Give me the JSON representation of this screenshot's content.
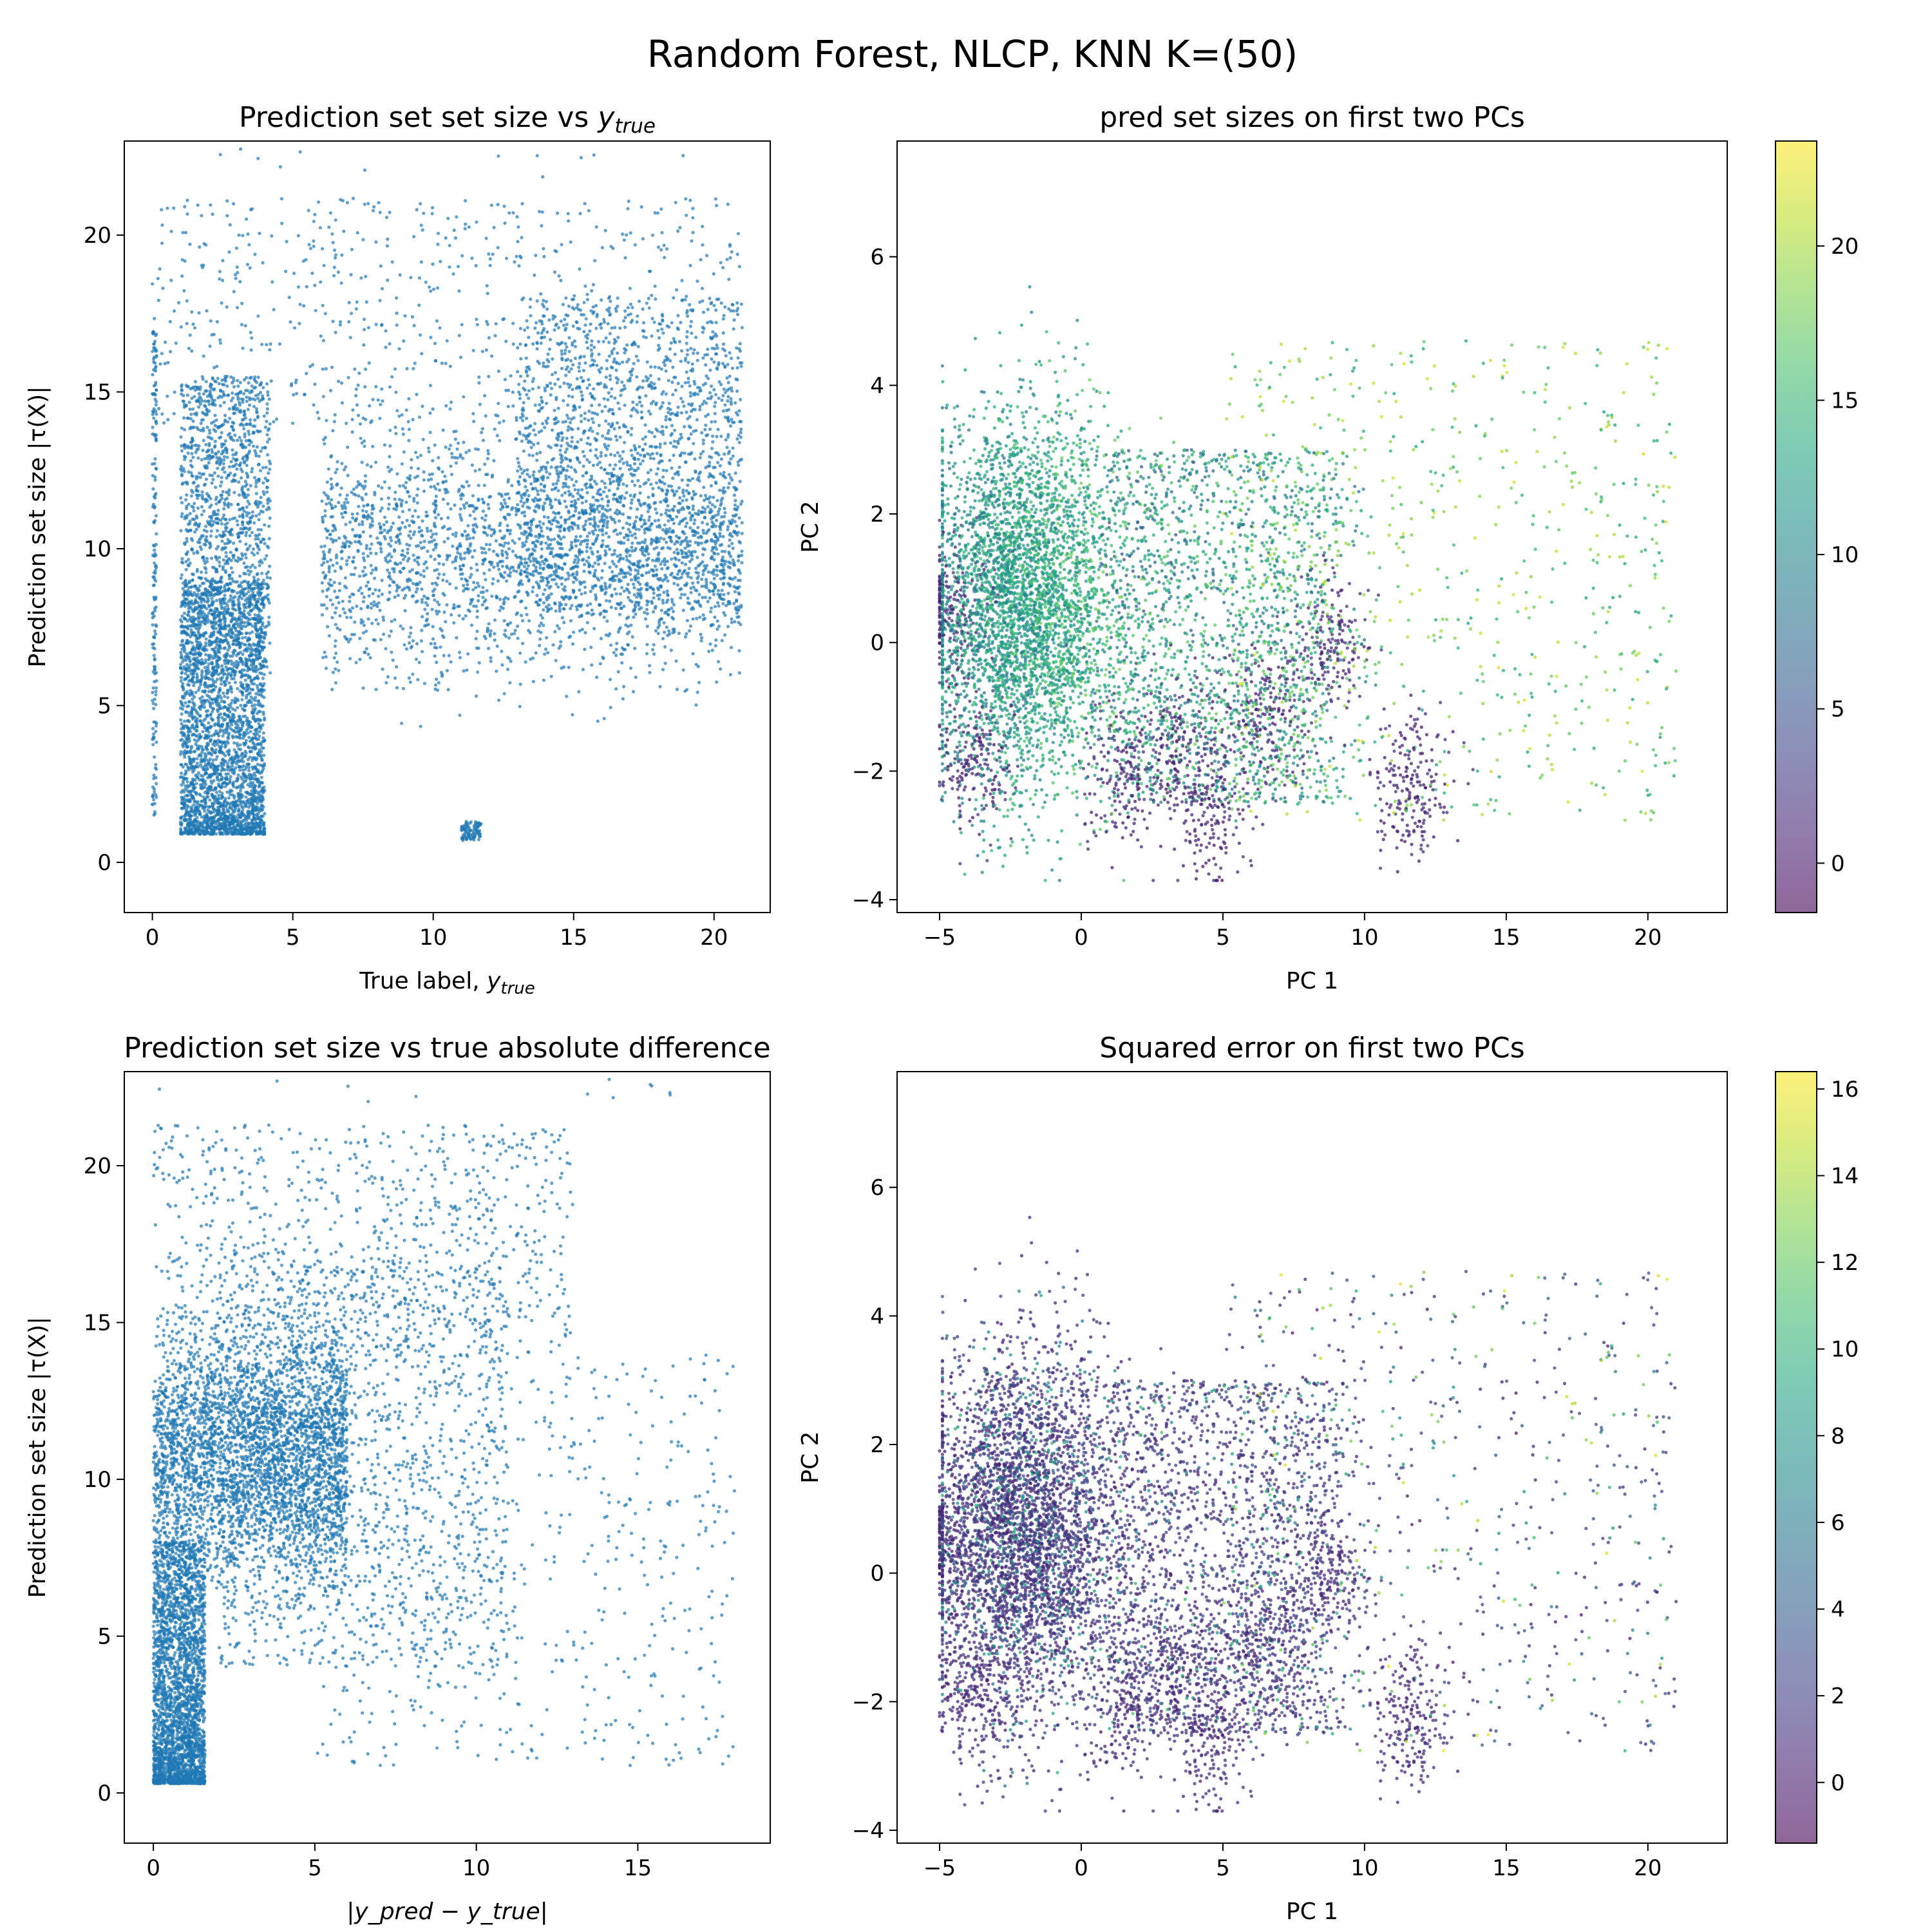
{
  "figure": {
    "suptitle": "Random Forest, NLCP, KNN K=(50)"
  },
  "chart_data": [
    {
      "type": "scatter",
      "title": "Prediction set set size vs y_true",
      "title_main": "Prediction set set size vs ",
      "title_sym": "y",
      "title_sub": "true",
      "xlabel_main": "True label, ",
      "xlabel_sym": "y",
      "xlabel_sub": "true",
      "ylabel": "Prediction set size |τ(X)|",
      "xlim": [
        -1.0,
        22.0
      ],
      "ylim": [
        -1.6,
        23.0
      ],
      "xticks": [
        0,
        5,
        10,
        15,
        20
      ],
      "yticks": [
        0,
        5,
        10,
        15,
        20
      ],
      "grid": false,
      "point_color": "#1f77b4",
      "n_points": 9000,
      "seed": 11,
      "clusters": [
        {
          "w": 0.3,
          "x": [
            1.0,
            4.0
          ],
          "y": [
            0.9,
            9.0
          ],
          "ydist": "low"
        },
        {
          "w": 0.16,
          "x": [
            1.0,
            4.2
          ],
          "y": [
            6.0,
            15.5
          ],
          "ydist": "uniform"
        },
        {
          "w": 0.28,
          "x": [
            6.0,
            21.0
          ],
          "y": [
            4.0,
            16.0
          ],
          "ydist": "mid"
        },
        {
          "w": 0.16,
          "x": [
            13.0,
            21.0
          ],
          "y": [
            8.0,
            18.0
          ],
          "ydist": "uniform"
        },
        {
          "w": 0.07,
          "x": [
            0.0,
            21.0
          ],
          "y": [
            14.0,
            21.2
          ],
          "ydist": "uniform"
        },
        {
          "w": 0.02,
          "x": [
            0.0,
            0.15
          ],
          "y": [
            1.5,
            17.0
          ],
          "ydist": "uniform"
        },
        {
          "w": 0.01,
          "x": [
            11.0,
            11.7
          ],
          "y": [
            0.7,
            1.3
          ],
          "ydist": "uniform"
        }
      ]
    },
    {
      "type": "scatter",
      "title": "pred set sizes on first two PCs",
      "xlabel": "PC 1",
      "ylabel": "PC 2",
      "xlim": [
        -6.5,
        22.8
      ],
      "ylim": [
        -4.2,
        7.8
      ],
      "xticks": [
        -5,
        0,
        5,
        10,
        15,
        20
      ],
      "yticks": [
        -4,
        -2,
        0,
        2,
        4,
        6
      ],
      "grid": false,
      "colorbar": {
        "colormap": "viridis",
        "alpha": 0.6,
        "range": [
          -1.6,
          23.4
        ],
        "ticks": [
          0,
          5,
          10,
          15,
          20
        ]
      },
      "color_mode": "set_size",
      "n_points": 8000,
      "seed": 23
    },
    {
      "type": "scatter",
      "title": "Prediction set size vs true absolute difference",
      "xlabel_main": "",
      "xlabel_sym": "|y_pred − y_true|",
      "ylabel": "Prediction set size |τ(X)|",
      "xlim": [
        -0.9,
        19.1
      ],
      "ylim": [
        -1.6,
        23.0
      ],
      "xticks": [
        0,
        5,
        10,
        15
      ],
      "yticks": [
        0,
        5,
        10,
        15,
        20
      ],
      "grid": false,
      "point_color": "#1f77b4",
      "n_points": 9000,
      "seed": 37,
      "clusters": [
        {
          "w": 0.3,
          "x": [
            0.0,
            1.6
          ],
          "y": [
            0.3,
            8.0
          ],
          "ydist": "low"
        },
        {
          "w": 0.4,
          "x": [
            0.0,
            6.0
          ],
          "y": [
            5.0,
            16.5
          ],
          "ydist": "mid"
        },
        {
          "w": 0.15,
          "x": [
            2.0,
            11.0
          ],
          "y": [
            4.0,
            17.0
          ],
          "ydist": "uniform"
        },
        {
          "w": 0.09,
          "x": [
            0.0,
            13.0
          ],
          "y": [
            14.0,
            21.3
          ],
          "ydist": "uniform"
        },
        {
          "w": 0.06,
          "x": [
            5.0,
            18.0
          ],
          "y": [
            0.8,
            14.0
          ],
          "ydist": "uniform"
        }
      ]
    },
    {
      "type": "scatter",
      "title": "Squared error on first two PCs",
      "xlabel": "PC 1",
      "ylabel": "PC 2",
      "xlim": [
        -6.5,
        22.8
      ],
      "ylim": [
        -4.2,
        7.8
      ],
      "xticks": [
        -5,
        0,
        5,
        10,
        15,
        20
      ],
      "yticks": [
        -4,
        -2,
        0,
        2,
        4,
        6
      ],
      "grid": false,
      "colorbar": {
        "colormap": "viridis",
        "alpha": 0.6,
        "range": [
          -1.4,
          16.4
        ],
        "ticks": [
          0,
          2,
          4,
          6,
          8,
          10,
          12,
          14,
          16
        ]
      },
      "color_mode": "error",
      "n_points": 8000,
      "seed": 23
    }
  ]
}
